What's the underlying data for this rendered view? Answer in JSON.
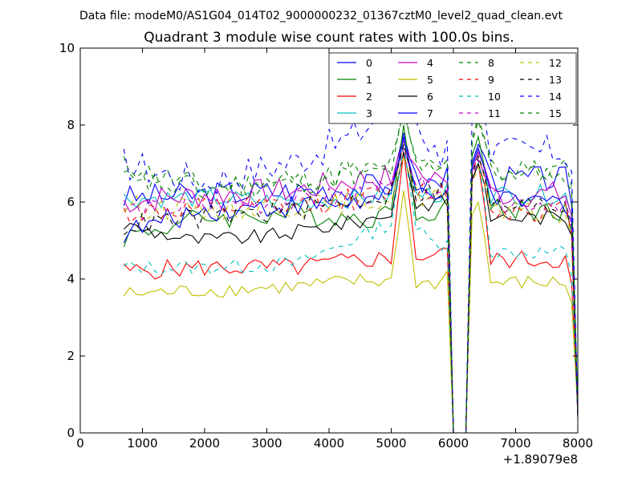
{
  "chart_data": {
    "type": "line",
    "suptitle": "Data file: modeM0/AS1G04_014T02_9000000232_01367cztM0_level2_quad_clean.evt",
    "title": "Quadrant 3 module wise count rates with 100.0s bins.",
    "xlabel": "",
    "ylabel": "",
    "x_offset_label": "+1.89079e8",
    "xlim": [
      0,
      8000
    ],
    "ylim": [
      0,
      10
    ],
    "xticks": [
      "0",
      "1000",
      "2000",
      "3000",
      "4000",
      "5000",
      "6000",
      "7000",
      "8000"
    ],
    "yticks": [
      "0",
      "2",
      "4",
      "6",
      "8",
      "10"
    ],
    "legend_position": "top-right",
    "gap": [
      6000,
      6200
    ],
    "x_start": 700,
    "x_end": 8000,
    "x_step": 100,
    "series": [
      {
        "name": "0",
        "color": "#0000ff",
        "dash": "solid",
        "base": 6.3,
        "amp": 0.35,
        "trend": [
          [
            700,
            6.1
          ],
          [
            2000,
            6.2
          ],
          [
            3500,
            6.3
          ],
          [
            4500,
            6.4
          ],
          [
            5700,
            6.5
          ]
        ],
        "peak": 7.8,
        "post": 6.6
      },
      {
        "name": "1",
        "color": "#008000",
        "dash": "solid",
        "base": 5.6,
        "amp": 0.3,
        "trend": [
          [
            700,
            5.1
          ],
          [
            2000,
            5.6
          ],
          [
            3500,
            5.7
          ],
          [
            4500,
            5.6
          ],
          [
            5700,
            5.8
          ]
        ],
        "peak": 8.0,
        "post": 5.8
      },
      {
        "name": "2",
        "color": "#ff0000",
        "dash": "solid",
        "base": 4.3,
        "amp": 0.25,
        "trend": [
          [
            700,
            4.2
          ],
          [
            2000,
            4.3
          ],
          [
            3500,
            4.3
          ],
          [
            4500,
            4.5
          ],
          [
            5700,
            4.6
          ]
        ],
        "peak": 7.3,
        "post": 4.5
      },
      {
        "name": "3",
        "color": "#00bfbf",
        "dash": "solid",
        "base": 6.0,
        "amp": 0.25,
        "trend": [
          [
            700,
            6.1
          ],
          [
            2000,
            6.1
          ],
          [
            3500,
            6.0
          ],
          [
            4500,
            6.1
          ],
          [
            5700,
            6.2
          ]
        ],
        "peak": 7.6,
        "post": 6.2
      },
      {
        "name": "4",
        "color": "#bf00bf",
        "dash": "solid",
        "base": 6.2,
        "amp": 0.35,
        "trend": [
          [
            700,
            6.0
          ],
          [
            2000,
            6.2
          ],
          [
            3500,
            6.3
          ],
          [
            4500,
            6.6
          ],
          [
            5700,
            6.7
          ]
        ],
        "peak": 7.6,
        "post": 6.2
      },
      {
        "name": "5",
        "color": "#bfbf00",
        "dash": "solid",
        "base": 3.7,
        "amp": 0.2,
        "trend": [
          [
            700,
            3.6
          ],
          [
            2000,
            3.7
          ],
          [
            3500,
            3.8
          ],
          [
            4500,
            3.95
          ],
          [
            5700,
            3.9
          ]
        ],
        "peak": 6.3,
        "post": 3.9
      },
      {
        "name": "6",
        "color": "#000000",
        "dash": "solid",
        "base": 5.2,
        "amp": 0.2,
        "trend": [
          [
            700,
            5.4
          ],
          [
            1800,
            5.0
          ],
          [
            3000,
            5.1
          ],
          [
            4500,
            5.5
          ],
          [
            5700,
            6.0
          ]
        ],
        "peak": 7.3,
        "post": 5.6
      },
      {
        "name": "7",
        "color": "#0000ff",
        "dash": "solid",
        "base": 5.8,
        "amp": 0.3,
        "trend": [
          [
            700,
            5.2
          ],
          [
            2000,
            5.8
          ],
          [
            3500,
            5.9
          ],
          [
            4500,
            6.0
          ],
          [
            5700,
            6.3
          ]
        ],
        "peak": 7.7,
        "post": 6.0
      },
      {
        "name": "8",
        "color": "#008000",
        "dash": "dashed",
        "base": 6.5,
        "amp": 0.35,
        "trend": [
          [
            700,
            6.9
          ],
          [
            2000,
            6.4
          ],
          [
            3500,
            6.5
          ],
          [
            4500,
            6.8
          ],
          [
            5700,
            6.9
          ]
        ],
        "peak": 8.5,
        "post": 6.8
      },
      {
        "name": "9",
        "color": "#ff0000",
        "dash": "dashed",
        "base": 5.9,
        "amp": 0.3,
        "trend": [
          [
            700,
            5.7
          ],
          [
            2000,
            5.8
          ],
          [
            3500,
            5.9
          ],
          [
            4500,
            6.1
          ],
          [
            5700,
            6.3
          ]
        ],
        "peak": 7.5,
        "post": 5.8
      },
      {
        "name": "10",
        "color": "#00bfbf",
        "dash": "dashed",
        "base": 4.3,
        "amp": 0.2,
        "trend": [
          [
            700,
            4.3
          ],
          [
            2000,
            4.3
          ],
          [
            3500,
            4.4
          ],
          [
            4500,
            5.1
          ],
          [
            5200,
            5.6
          ],
          [
            5700,
            4.9
          ]
        ],
        "peak": 7.4,
        "post": 4.7
      },
      {
        "name": "11",
        "color": "#bf00bf",
        "dash": "dashed",
        "base": 5.9,
        "amp": 0.3,
        "trend": [
          [
            700,
            5.8
          ],
          [
            2000,
            5.9
          ],
          [
            3500,
            6.0
          ],
          [
            4500,
            6.2
          ],
          [
            5700,
            6.4
          ]
        ],
        "peak": 7.4,
        "post": 6.0
      },
      {
        "name": "12",
        "color": "#bfbf00",
        "dash": "dashed",
        "base": 5.8,
        "amp": 0.3,
        "trend": [
          [
            700,
            5.9
          ],
          [
            2000,
            5.8
          ],
          [
            3500,
            5.9
          ],
          [
            4500,
            6.0
          ],
          [
            5700,
            6.2
          ]
        ],
        "peak": 7.2,
        "post": 5.7
      },
      {
        "name": "13",
        "color": "#000000",
        "dash": "dashed",
        "base": 5.6,
        "amp": 0.3,
        "trend": [
          [
            700,
            5.4
          ],
          [
            2000,
            5.6
          ],
          [
            3500,
            5.8
          ],
          [
            4500,
            6.1
          ],
          [
            5700,
            6.3
          ]
        ],
        "peak": 7.5,
        "post": 5.9
      },
      {
        "name": "14",
        "color": "#0000ff",
        "dash": "dashed",
        "base": 7.0,
        "amp": 0.45,
        "trend": [
          [
            700,
            7.0
          ],
          [
            2000,
            6.5
          ],
          [
            3500,
            7.1
          ],
          [
            4500,
            7.8
          ],
          [
            5200,
            8.8
          ],
          [
            5700,
            7.3
          ]
        ],
        "peak": 9.2,
        "post": 7.3
      },
      {
        "name": "15",
        "color": "#008000",
        "dash": "dashed",
        "base": 6.4,
        "amp": 0.35,
        "trend": [
          [
            700,
            6.6
          ],
          [
            2000,
            6.3
          ],
          [
            3500,
            6.5
          ],
          [
            4500,
            6.8
          ],
          [
            5700,
            7.0
          ]
        ],
        "peak": 8.4,
        "post": 6.8
      }
    ]
  }
}
